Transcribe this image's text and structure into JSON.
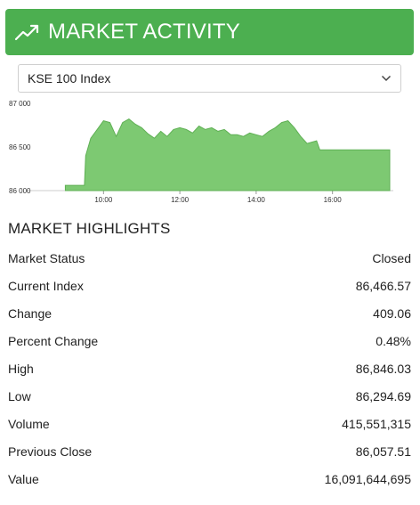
{
  "header": {
    "title": "MARKET ACTIVITY",
    "icon": "trend-up-icon",
    "color": "#4caf50"
  },
  "index_select": {
    "selected": "KSE 100 Index"
  },
  "chart_data": {
    "type": "area",
    "x_ticks": [
      "10:00",
      "12:00",
      "14:00",
      "16:00"
    ],
    "y_ticks": [
      "87 000",
      "86 500",
      "86 000"
    ],
    "ylim": [
      86000,
      87000
    ],
    "xlim": [
      "08:30",
      "17:30"
    ],
    "color": "#7dc972",
    "series": [
      {
        "x": [
          "09:00",
          "09:30",
          "09:32",
          "09:40",
          "09:50",
          "10:00",
          "10:10",
          "10:20",
          "10:30",
          "10:40",
          "10:50",
          "11:00",
          "11:10",
          "11:20",
          "11:30",
          "11:40",
          "11:50",
          "12:00",
          "12:10",
          "12:20",
          "12:30",
          "12:40",
          "12:50",
          "13:00",
          "13:10",
          "13:20",
          "13:30",
          "13:40",
          "13:50",
          "14:00",
          "14:10",
          "14:20",
          "14:30",
          "14:40",
          "14:50",
          "15:00",
          "15:10",
          "15:20",
          "15:30",
          "15:35",
          "15:40",
          "16:00",
          "16:30",
          "17:00",
          "17:30"
        ],
        "y": [
          86060,
          86060,
          86400,
          86600,
          86700,
          86800,
          86780,
          86620,
          86780,
          86820,
          86760,
          86720,
          86650,
          86600,
          86680,
          86620,
          86700,
          86720,
          86700,
          86660,
          86740,
          86700,
          86720,
          86680,
          86700,
          86640,
          86640,
          86620,
          86660,
          86640,
          86620,
          86680,
          86720,
          86780,
          86800,
          86720,
          86620,
          86540,
          86560,
          86570,
          86466,
          86466,
          86466,
          86466,
          86466
        ]
      }
    ]
  },
  "highlights": {
    "title": "MARKET HIGHLIGHTS",
    "rows": [
      {
        "label": "Market Status",
        "value": "Closed"
      },
      {
        "label": "Current Index",
        "value": "86,466.57"
      },
      {
        "label": "Change",
        "value": "409.06"
      },
      {
        "label": "Percent Change",
        "value": "0.48%"
      },
      {
        "label": "High",
        "value": "86,846.03"
      },
      {
        "label": "Low",
        "value": "86,294.69"
      },
      {
        "label": "Volume",
        "value": "415,551,315"
      },
      {
        "label": "Previous Close",
        "value": "86,057.51"
      },
      {
        "label": "Value",
        "value": "16,091,644,695"
      }
    ]
  }
}
